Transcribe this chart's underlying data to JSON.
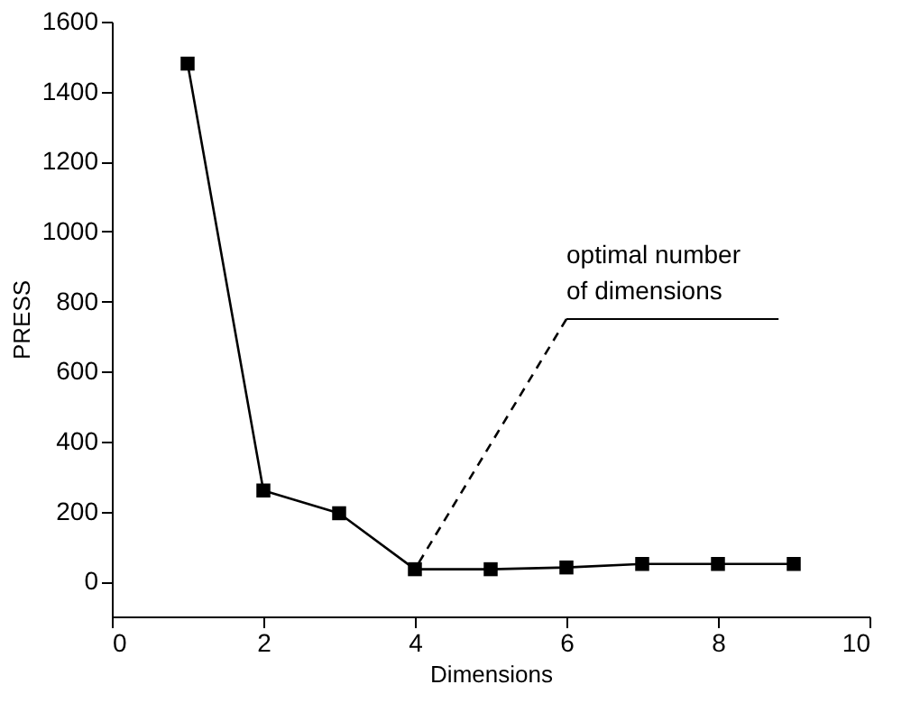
{
  "chart_data": {
    "type": "line",
    "xlabel": "Dimensions",
    "ylabel": "PRESS",
    "x": [
      1,
      2,
      3,
      4,
      5,
      6,
      7,
      8,
      9
    ],
    "series": [
      {
        "color": "#000000",
        "values": [
          1480,
          260,
          195,
          35,
          35,
          40,
          50,
          50,
          50
        ]
      }
    ],
    "xlim": [
      0,
      10
    ],
    "xticks": [
      0,
      2,
      4,
      6,
      8,
      10
    ],
    "ylim": [
      -100,
      1600
    ],
    "yticks": [
      0,
      200,
      400,
      600,
      800,
      1000,
      1200,
      1400,
      1600
    ],
    "grid": false,
    "marker": "square",
    "line_style": "solid",
    "annotations": [
      {
        "text": "optimal number\nof dimensions",
        "x": 4,
        "y": 35
      }
    ]
  }
}
